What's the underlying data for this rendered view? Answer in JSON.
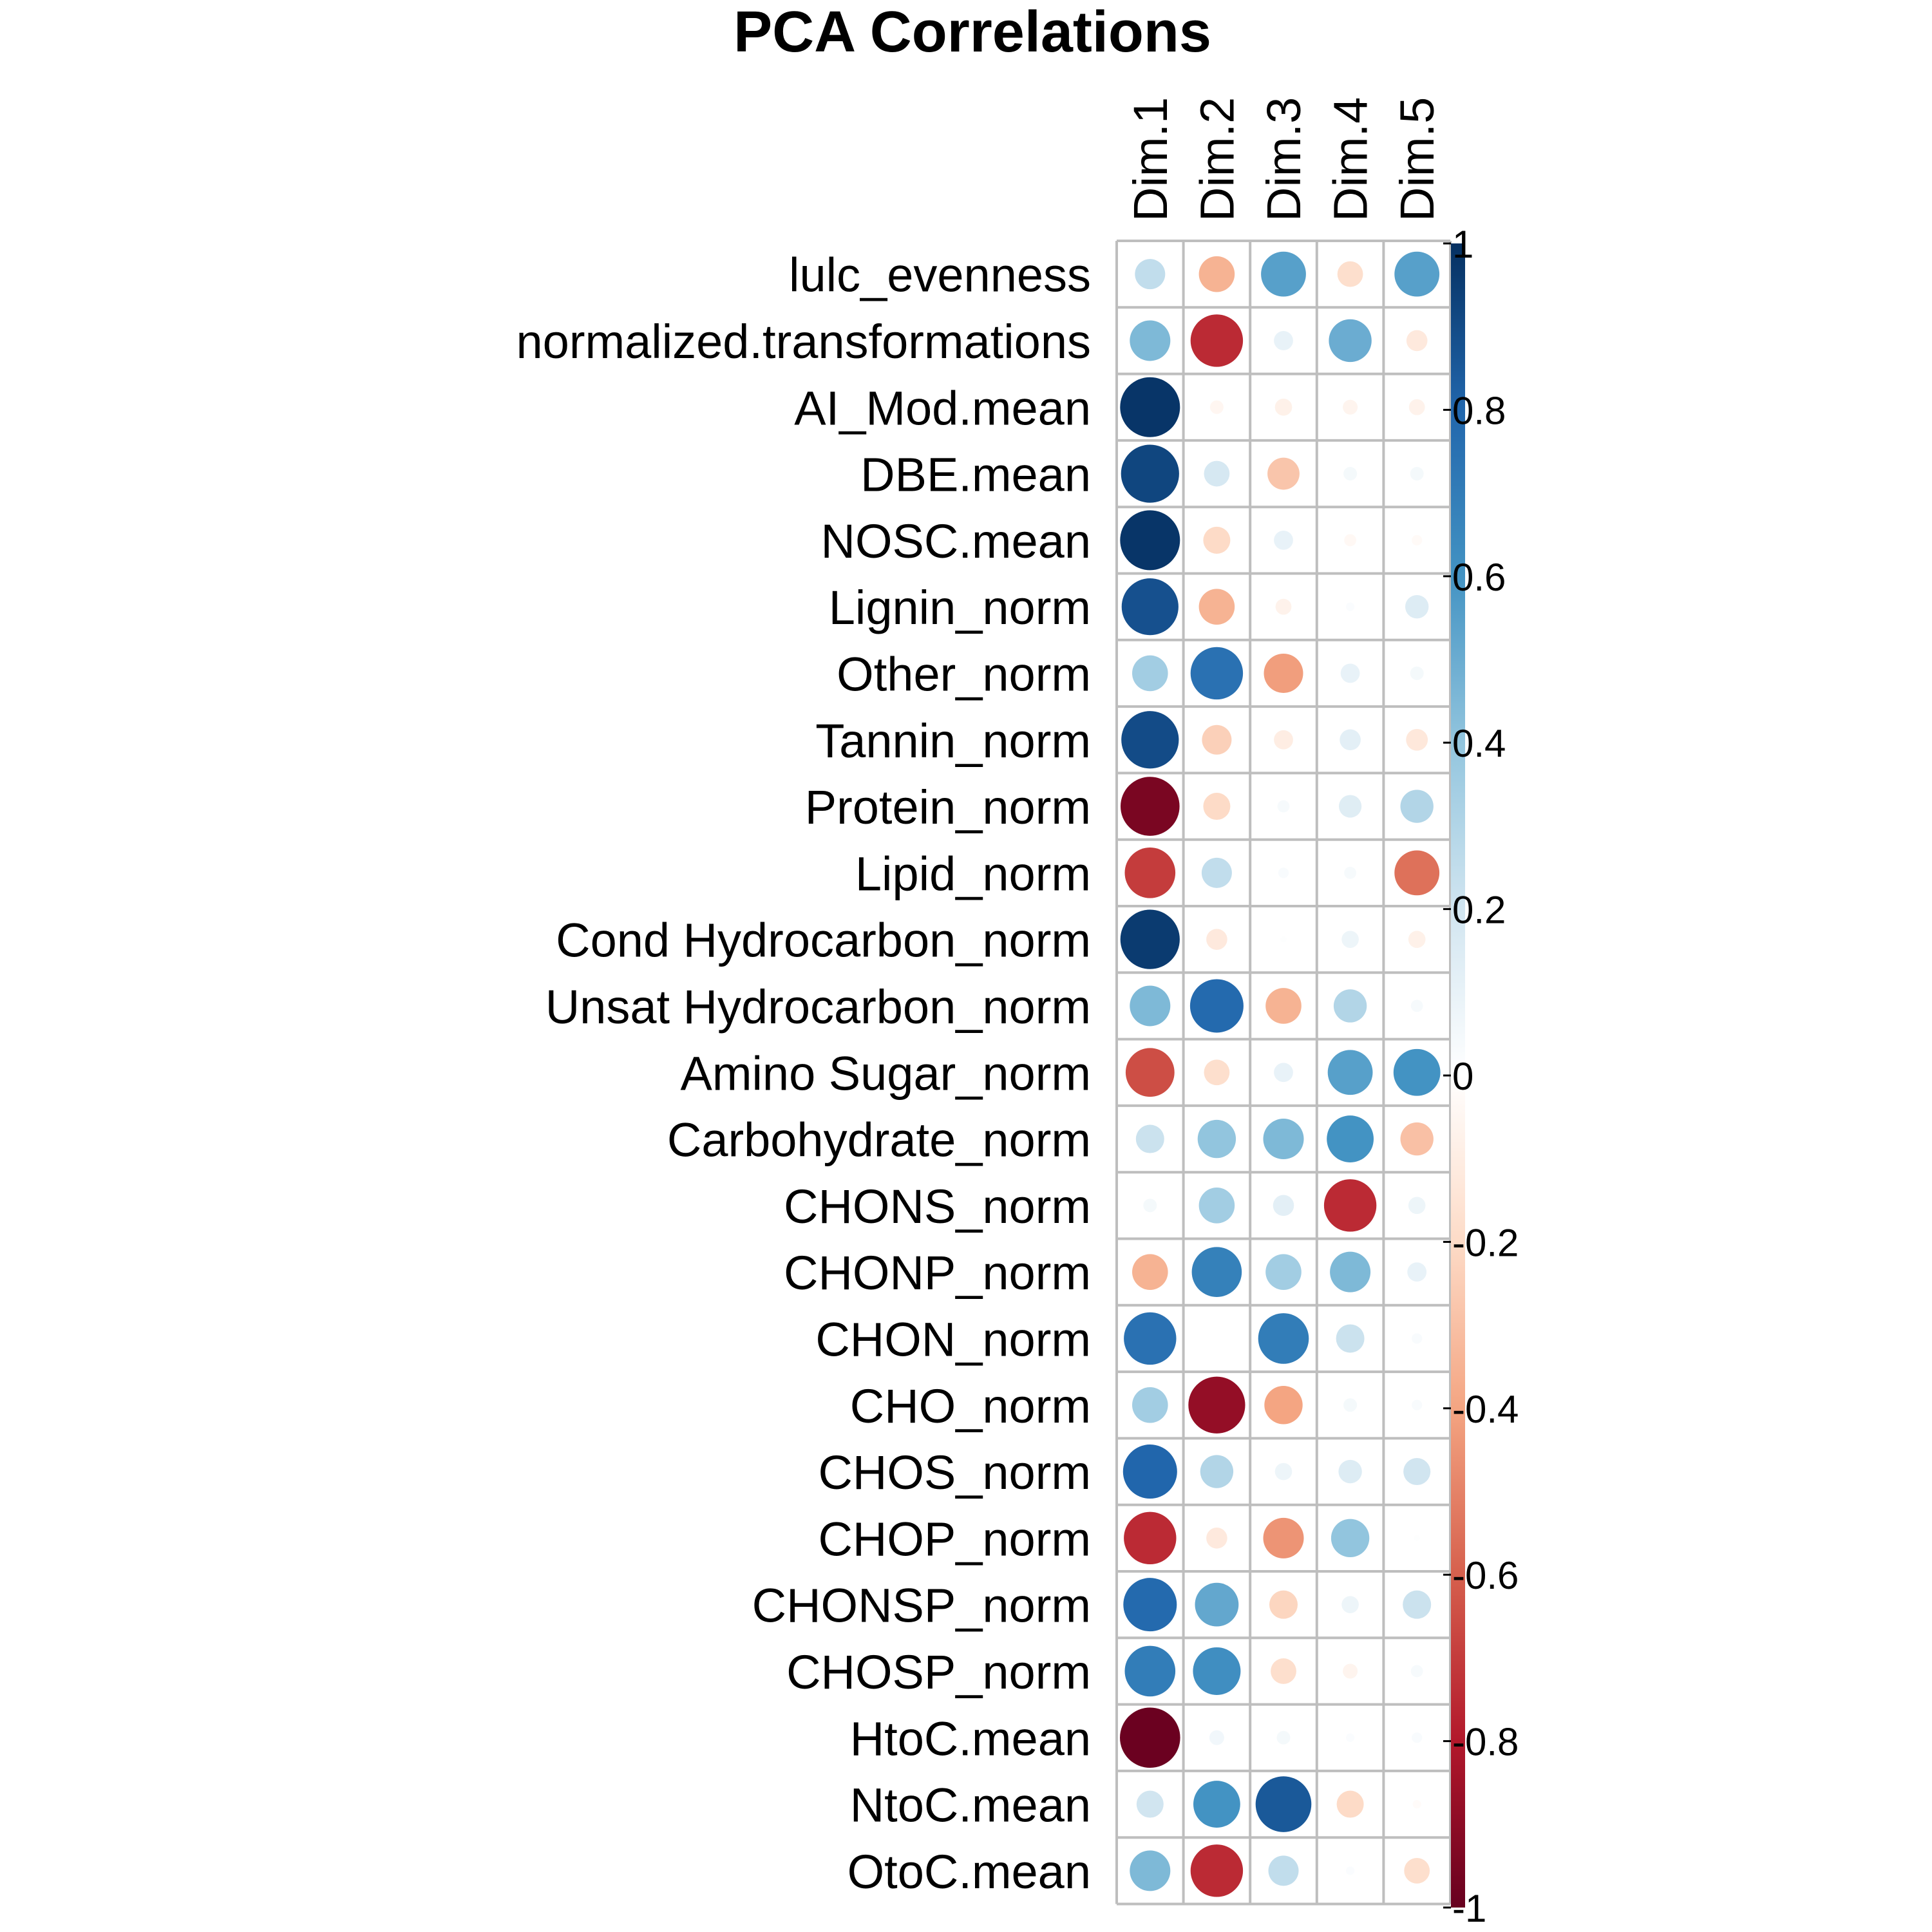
{
  "chart_data": {
    "type": "heatmap",
    "title": "PCA Correlations",
    "columns": [
      "Dim.1",
      "Dim.2",
      "Dim.3",
      "Dim.4",
      "Dim.5"
    ],
    "rows": [
      "lulc_evenness",
      "normalized.transformations",
      "AI_Mod.mean",
      "DBE.mean",
      "NOSC.mean",
      "Lignin_norm",
      "Other_norm",
      "Tannin_norm",
      "Protein_norm",
      "Lipid_norm",
      "Cond Hydrocarbon_norm",
      "Unsat Hydrocarbon_norm",
      "Amino Sugar_norm",
      "Carbohydrate_norm",
      "CHONS_norm",
      "CHONP_norm",
      "CHON_norm",
      "CHO_norm",
      "CHOS_norm",
      "CHOP_norm",
      "CHONSP_norm",
      "CHOSP_norm",
      "HtoC.mean",
      "NtoC.mean",
      "OtoC.mean"
    ],
    "values": [
      [
        0.25,
        -0.35,
        0.55,
        -0.18,
        0.55
      ],
      [
        0.45,
        -0.75,
        0.1,
        0.5,
        -0.12
      ],
      [
        0.98,
        -0.05,
        -0.08,
        -0.06,
        -0.07
      ],
      [
        0.92,
        0.18,
        -0.28,
        0.05,
        0.05
      ],
      [
        0.98,
        -0.2,
        0.1,
        -0.04,
        -0.03
      ],
      [
        0.88,
        -0.35,
        -0.07,
        0.02,
        0.15
      ],
      [
        0.35,
        0.75,
        -0.42,
        0.1,
        0.05
      ],
      [
        0.9,
        -0.24,
        -0.1,
        0.12,
        -0.13
      ],
      [
        -0.95,
        -0.2,
        0.04,
        0.14,
        0.3
      ],
      [
        -0.7,
        0.25,
        0.03,
        0.04,
        -0.55
      ],
      [
        0.96,
        -0.12,
        0.01,
        0.08,
        -0.08
      ],
      [
        0.45,
        0.78,
        -0.35,
        0.3,
        0.04
      ],
      [
        -0.65,
        -0.18,
        0.1,
        0.55,
        0.6
      ],
      [
        0.22,
        0.4,
        0.45,
        0.6,
        -0.3
      ],
      [
        0.05,
        0.35,
        0.12,
        -0.75,
        0.08
      ],
      [
        -0.35,
        0.68,
        0.35,
        0.45,
        0.1
      ],
      [
        0.75,
        0.0,
        0.7,
        0.22,
        0.03
      ],
      [
        0.35,
        -0.88,
        -0.4,
        0.05,
        0.03
      ],
      [
        0.8,
        0.3,
        0.08,
        0.15,
        0.2
      ],
      [
        -0.75,
        -0.12,
        -0.45,
        0.4,
        0.01
      ],
      [
        0.78,
        0.52,
        -0.22,
        0.08,
        0.22
      ],
      [
        0.7,
        0.62,
        -0.18,
        -0.06,
        0.04
      ],
      [
        -0.99,
        0.06,
        0.05,
        0.02,
        0.03
      ],
      [
        0.2,
        0.6,
        0.85,
        -0.2,
        -0.02
      ],
      [
        0.45,
        -0.75,
        0.25,
        0.02,
        -0.18
      ]
    ],
    "colorbar": {
      "ticks": [
        "1",
        "0.8",
        "0.6",
        "0.4",
        "0.2",
        "0",
        "-0.2",
        "-0.4",
        "-0.6",
        "-0.8",
        "-1"
      ],
      "range": [
        -1,
        1
      ],
      "colors": [
        "#67001F",
        "#B2182B",
        "#D6604D",
        "#F4A582",
        "#FDDBC7",
        "#FFFFFF",
        "#D1E5F0",
        "#92C5DE",
        "#4393C3",
        "#2166AC",
        "#053061"
      ]
    },
    "grid": true,
    "legend": "right"
  }
}
